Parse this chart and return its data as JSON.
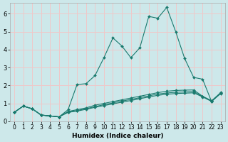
{
  "xlabel": "Humidex (Indice chaleur)",
  "bg_color": "#cde8ea",
  "grid_color": "#f0c8c8",
  "line_color": "#1a7a6e",
  "xlim": [
    -0.5,
    23.5
  ],
  "ylim": [
    0,
    6.6
  ],
  "xticks": [
    0,
    1,
    2,
    3,
    4,
    5,
    6,
    7,
    8,
    9,
    10,
    11,
    12,
    13,
    14,
    15,
    16,
    17,
    18,
    19,
    20,
    21,
    22,
    23
  ],
  "yticks": [
    0,
    1,
    2,
    3,
    4,
    5,
    6
  ],
  "lines": [
    {
      "x": [
        0,
        1,
        2,
        3,
        4,
        5,
        6,
        7,
        8,
        9,
        10,
        11,
        12,
        13,
        14,
        15,
        16,
        17,
        18,
        19,
        20,
        21,
        22,
        23
      ],
      "y": [
        0.5,
        0.85,
        0.7,
        0.35,
        0.3,
        0.25,
        0.65,
        2.05,
        2.1,
        2.55,
        3.55,
        4.65,
        4.2,
        3.55,
        4.1,
        5.85,
        5.75,
        6.35,
        5.0,
        3.5,
        2.45,
        2.35,
        1.1,
        1.6
      ]
    },
    {
      "x": [
        0,
        1,
        2,
        3,
        4,
        5,
        6,
        7,
        8,
        9,
        10,
        11,
        12,
        13,
        14,
        15,
        16,
        17,
        18,
        19,
        20,
        21,
        22,
        23
      ],
      "y": [
        0.5,
        0.85,
        0.7,
        0.35,
        0.3,
        0.25,
        0.55,
        0.65,
        0.75,
        0.9,
        1.0,
        1.1,
        1.2,
        1.3,
        1.4,
        1.5,
        1.6,
        1.68,
        1.72,
        1.74,
        1.75,
        1.4,
        1.15,
        1.58
      ]
    },
    {
      "x": [
        0,
        1,
        2,
        3,
        4,
        5,
        6,
        7,
        8,
        9,
        10,
        11,
        12,
        13,
        14,
        15,
        16,
        17,
        18,
        19,
        20,
        21,
        22,
        23
      ],
      "y": [
        0.5,
        0.85,
        0.7,
        0.35,
        0.3,
        0.25,
        0.52,
        0.6,
        0.7,
        0.82,
        0.93,
        1.03,
        1.13,
        1.22,
        1.32,
        1.42,
        1.52,
        1.58,
        1.62,
        1.64,
        1.66,
        1.38,
        1.13,
        1.56
      ]
    },
    {
      "x": [
        0,
        1,
        2,
        3,
        4,
        5,
        6,
        7,
        8,
        9,
        10,
        11,
        12,
        13,
        14,
        15,
        16,
        17,
        18,
        19,
        20,
        21,
        22,
        23
      ],
      "y": [
        0.5,
        0.85,
        0.7,
        0.35,
        0.3,
        0.25,
        0.5,
        0.57,
        0.67,
        0.78,
        0.88,
        0.97,
        1.07,
        1.16,
        1.26,
        1.36,
        1.45,
        1.51,
        1.55,
        1.57,
        1.59,
        1.36,
        1.11,
        1.54
      ]
    }
  ]
}
